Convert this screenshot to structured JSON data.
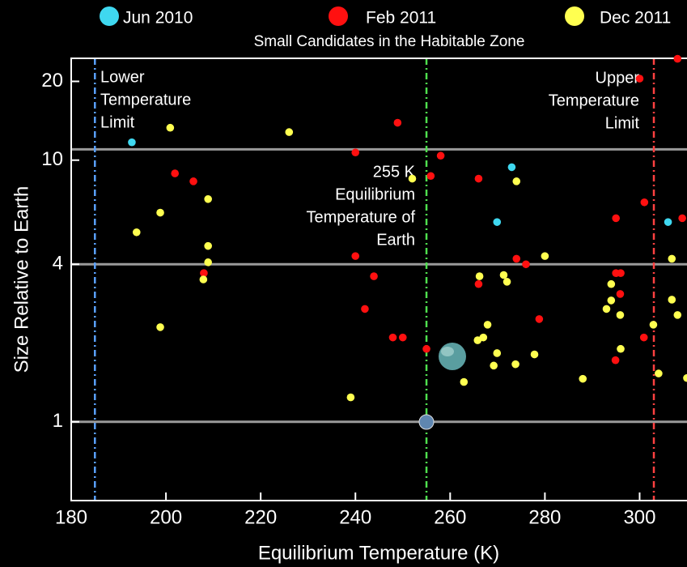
{
  "chart_data": {
    "type": "scatter",
    "title": "Small Candidates in the Habitable Zone",
    "x_label": "Equilibrium Temperature (K)",
    "y_label": "Size Relative to Earth",
    "xlim": [
      180,
      310
    ],
    "ylim": [
      0.5,
      24.5
    ],
    "log_y": true,
    "xticks": [
      180,
      200,
      220,
      240,
      260,
      280,
      300
    ],
    "yticks": [
      1,
      4,
      10,
      20
    ],
    "hlines": [
      1,
      4,
      11
    ],
    "hline_color": "#9a9a9a",
    "vlines": [
      185,
      255,
      303
    ],
    "vline_colors": [
      "#5aa0ff",
      "#4fe04f",
      "#ff4040"
    ],
    "annotations": [
      [
        "Lower",
        "Temperature",
        "Limit"
      ],
      [
        "255 K",
        "Equilibrium",
        "Temperature of",
        "Earth"
      ],
      [
        "Upper",
        "Temperature",
        "Limit"
      ]
    ],
    "legend": "top",
    "series": [
      {
        "name": "Jun 2010",
        "color": "#3fd8f0",
        "x": [
          192.8,
          273,
          269.9,
          306
        ],
        "values": [
          11.7,
          9.4,
          5.8,
          5.8
        ]
      },
      {
        "name": "Feb 2011",
        "color": "#ff1010",
        "x": [
          300,
          308,
          248.9,
          240,
          258,
          255.9,
          266,
          201.9,
          205.8,
          301,
          295,
          309,
          240,
          274,
          276,
          208,
          243.9,
          295,
          296,
          266,
          295.9,
          242,
          278.8,
          247.9,
          250,
          300.9,
          255,
          294.9
        ],
        "values": [
          20.5,
          24.4,
          13.9,
          10.7,
          10.4,
          8.7,
          8.5,
          8.9,
          8.3,
          6.9,
          6.0,
          6.0,
          4.3,
          4.2,
          4.0,
          3.7,
          3.6,
          3.7,
          3.7,
          3.36,
          3.08,
          2.7,
          2.47,
          2.1,
          2.1,
          2.1,
          1.9,
          1.72
        ]
      },
      {
        "name": "Dec 2011",
        "color": "#ffff50",
        "x": [
          200.9,
          226,
          252,
          274,
          208.9,
          198.8,
          193.8,
          208.9,
          208.9,
          280,
          306.8,
          207.9,
          266.2,
          271.3,
          272,
          294,
          294,
          306.8,
          293,
          295.9,
          308,
          302.9,
          198.8,
          267.9,
          267,
          265.8,
          296,
          269.9,
          277.8,
          273.8,
          269.2,
          304,
          288,
          262.9,
          310,
          239
        ],
        "values": [
          13.3,
          12.8,
          8.5,
          8.3,
          7.1,
          6.3,
          5.3,
          4.7,
          4.07,
          4.3,
          4.2,
          3.5,
          3.6,
          3.64,
          3.43,
          3.36,
          2.91,
          2.93,
          2.7,
          2.56,
          2.56,
          2.35,
          2.3,
          2.35,
          2.1,
          2.05,
          1.9,
          1.83,
          1.81,
          1.66,
          1.64,
          1.53,
          1.46,
          1.42,
          1.47,
          1.24
        ]
      }
    ]
  }
}
